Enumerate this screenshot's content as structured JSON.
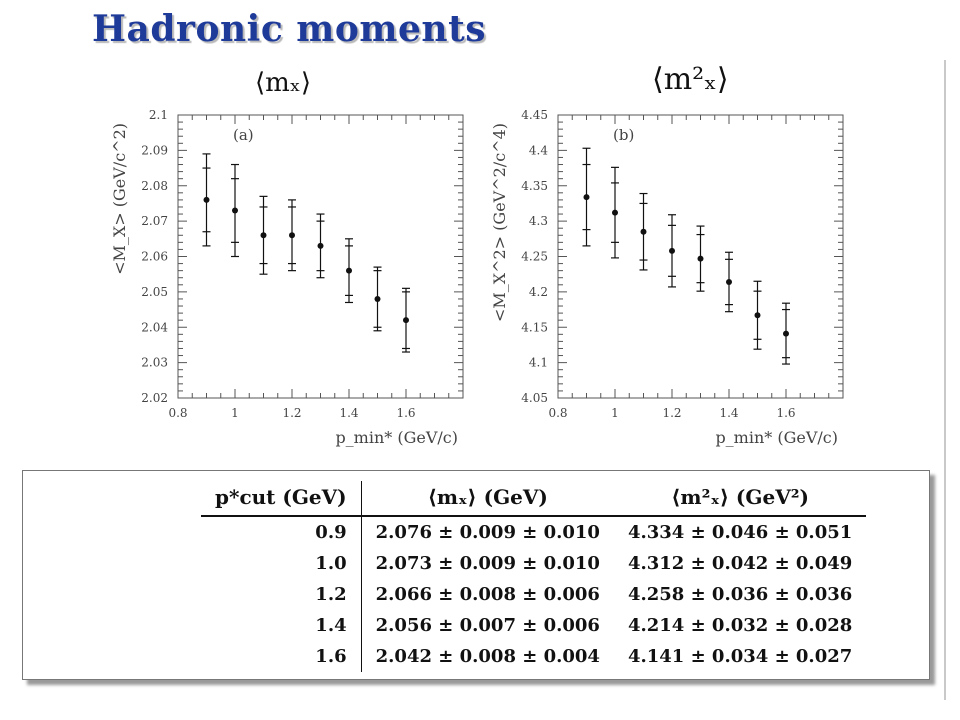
{
  "slide_title": "Hadronic moments",
  "panels": [
    {
      "title": "⟨mₓ⟩"
    },
    {
      "title": "⟨m²ₓ⟩"
    }
  ],
  "chart_data": [
    {
      "type": "scatter",
      "panel_label": "(a)",
      "xlabel": "p_min* (GeV/c)",
      "ylabel": "<M_X> (GeV/c^2)",
      "xlim": [
        0.8,
        1.8
      ],
      "ylim": [
        2.02,
        2.1
      ],
      "x_ticks": [
        "0.8",
        "1",
        "1.2",
        "1.4",
        "1.6"
      ],
      "y_ticks": [
        "2.02",
        "2.03",
        "2.04",
        "2.05",
        "2.06",
        "2.07",
        "2.08",
        "2.09",
        "2.1"
      ],
      "x": [
        0.9,
        1.0,
        1.1,
        1.2,
        1.3,
        1.4,
        1.5,
        1.6
      ],
      "y": [
        2.076,
        2.073,
        2.066,
        2.066,
        2.063,
        2.056,
        2.048,
        2.042
      ],
      "err_inner": [
        0.009,
        0.009,
        0.008,
        0.008,
        0.007,
        0.007,
        0.008,
        0.008
      ],
      "err_outer": [
        0.013,
        0.013,
        0.011,
        0.01,
        0.009,
        0.009,
        0.009,
        0.009
      ]
    },
    {
      "type": "scatter",
      "panel_label": "(b)",
      "xlabel": "p_min* (GeV/c)",
      "ylabel": "<M_X^2> (GeV^2/c^4)",
      "xlim": [
        0.8,
        1.8
      ],
      "ylim": [
        4.05,
        4.45
      ],
      "x_ticks": [
        "0.8",
        "1",
        "1.2",
        "1.4",
        "1.6"
      ],
      "y_ticks": [
        "4.05",
        "4.1",
        "4.15",
        "4.2",
        "4.25",
        "4.3",
        "4.35",
        "4.4",
        "4.45"
      ],
      "x": [
        0.9,
        1.0,
        1.1,
        1.2,
        1.3,
        1.4,
        1.5,
        1.6
      ],
      "y": [
        4.334,
        4.312,
        4.285,
        4.258,
        4.247,
        4.214,
        4.167,
        4.141
      ],
      "err_inner": [
        0.046,
        0.042,
        0.04,
        0.036,
        0.034,
        0.032,
        0.034,
        0.034
      ],
      "err_outer": [
        0.069,
        0.064,
        0.054,
        0.051,
        0.046,
        0.042,
        0.048,
        0.043
      ]
    }
  ],
  "table": {
    "headers": [
      "p*cut (GeV)",
      "⟨mₓ⟩ (GeV)",
      "⟨m²ₓ⟩ (GeV²)"
    ],
    "rows": [
      [
        "0.9",
        "2.076 ± 0.009 ± 0.010",
        "4.334 ± 0.046 ± 0.051"
      ],
      [
        "1.0",
        "2.073 ± 0.009 ± 0.010",
        "4.312 ± 0.042 ± 0.049"
      ],
      [
        "1.2",
        "2.066 ± 0.008 ± 0.006",
        "4.258 ± 0.036 ± 0.036"
      ],
      [
        "1.4",
        "2.056 ± 0.007 ± 0.006",
        "4.214 ± 0.032 ± 0.028"
      ],
      [
        "1.6",
        "2.042 ± 0.008 ± 0.004",
        "4.141 ± 0.034 ± 0.027"
      ]
    ]
  }
}
